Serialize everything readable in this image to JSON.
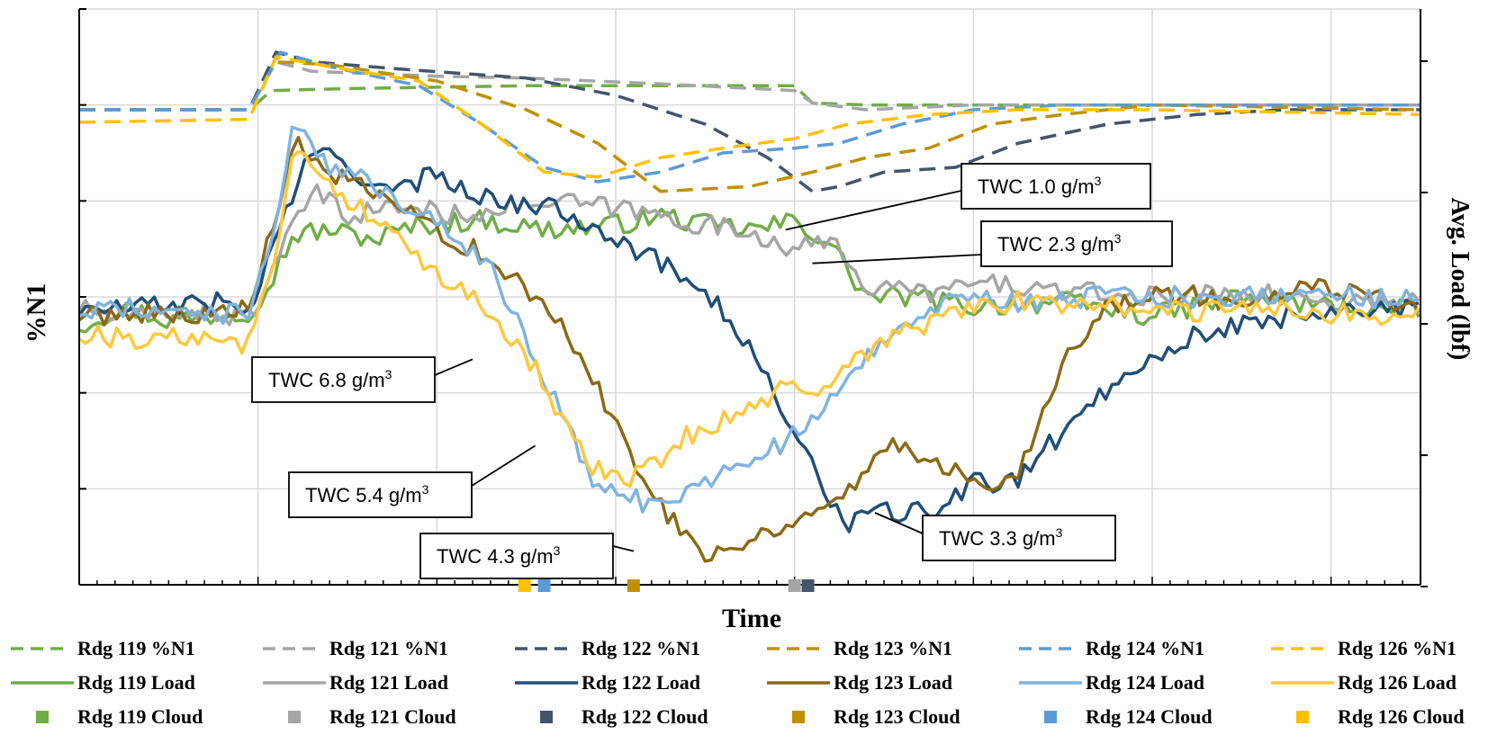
{
  "chart_data": {
    "type": "line",
    "xlabel": "Time",
    "ylabel": "%N1",
    "y2label": "Avg. Load (lbf)",
    "xlim": [
      0,
      15
    ],
    "ylim": [
      0,
      6
    ],
    "y2lim": [
      0,
      6
    ],
    "grid": true,
    "tick_labels_shown": false,
    "legend_position": "bottom",
    "colors": {
      "Rdg 119": "#70ad47",
      "Rdg 121": "#a5a5a5",
      "Rdg 122": "#44546a",
      "Rdg 123": "#bf9000",
      "Rdg 124": "#5b9bd5",
      "Rdg 126": "#ffc000"
    },
    "load_colors": {
      "Rdg 119": "#70ad47",
      "Rdg 121": "#a5a5a5",
      "Rdg 122": "#1f4e79",
      "Rdg 123": "#8b6914",
      "Rdg 124": "#7eb3e0",
      "Rdg 126": "#ffc83d"
    },
    "series_n1": [
      {
        "name": "Rdg 119 %N1",
        "key": "Rdg 119",
        "points": [
          [
            0,
            4.95
          ],
          [
            1.9,
            4.95
          ],
          [
            2.15,
            5.15
          ],
          [
            3,
            5.17
          ],
          [
            5,
            5.2
          ],
          [
            7,
            5.2
          ],
          [
            8,
            5.2
          ],
          [
            8.2,
            5.02
          ],
          [
            8.8,
            5
          ],
          [
            10,
            5
          ],
          [
            12,
            5
          ],
          [
            15,
            5
          ]
        ]
      },
      {
        "name": "Rdg 121 %N1",
        "key": "Rdg 121",
        "points": [
          [
            0,
            4.95
          ],
          [
            1.9,
            4.95
          ],
          [
            2.2,
            5.45
          ],
          [
            2.6,
            5.35
          ],
          [
            4,
            5.3
          ],
          [
            5,
            5.28
          ],
          [
            6.5,
            5.22
          ],
          [
            8,
            5.15
          ],
          [
            8.2,
            5.02
          ],
          [
            8.8,
            4.95
          ],
          [
            10,
            5.0
          ],
          [
            12,
            5.0
          ],
          [
            15,
            5.0
          ]
        ]
      },
      {
        "name": "Rdg 122 %N1",
        "key": "Rdg 122",
        "points": [
          [
            0,
            4.95
          ],
          [
            1.9,
            4.95
          ],
          [
            2.2,
            5.55
          ],
          [
            2.6,
            5.45
          ],
          [
            3.5,
            5.38
          ],
          [
            5,
            5.28
          ],
          [
            6,
            5.1
          ],
          [
            7,
            4.8
          ],
          [
            7.7,
            4.45
          ],
          [
            8.2,
            4.1
          ],
          [
            8.5,
            4.15
          ],
          [
            9,
            4.3
          ],
          [
            9.8,
            4.35
          ],
          [
            10.5,
            4.6
          ],
          [
            11.5,
            4.8
          ],
          [
            12.5,
            4.9
          ],
          [
            13.5,
            4.95
          ],
          [
            15,
            4.95
          ]
        ]
      },
      {
        "name": "Rdg 123 %N1",
        "key": "Rdg 123",
        "points": [
          [
            0,
            4.95
          ],
          [
            1.9,
            4.95
          ],
          [
            2.2,
            5.45
          ],
          [
            2.8,
            5.42
          ],
          [
            4,
            5.25
          ],
          [
            5,
            4.95
          ],
          [
            5.8,
            4.6
          ],
          [
            6.5,
            4.1
          ],
          [
            7.5,
            4.15
          ],
          [
            8.2,
            4.3
          ],
          [
            8.8,
            4.45
          ],
          [
            9.5,
            4.55
          ],
          [
            10.2,
            4.8
          ],
          [
            11,
            4.9
          ],
          [
            12,
            5.0
          ],
          [
            15,
            4.95
          ]
        ]
      },
      {
        "name": "Rdg 124 %N1",
        "key": "Rdg 124",
        "points": [
          [
            0,
            4.95
          ],
          [
            1.9,
            4.95
          ],
          [
            2.25,
            5.55
          ],
          [
            2.8,
            5.4
          ],
          [
            3.8,
            5.2
          ],
          [
            4.5,
            4.8
          ],
          [
            5.2,
            4.35
          ],
          [
            5.8,
            4.2
          ],
          [
            6.5,
            4.3
          ],
          [
            7.2,
            4.5
          ],
          [
            8,
            4.55
          ],
          [
            8.5,
            4.6
          ],
          [
            9.2,
            4.8
          ],
          [
            10,
            4.95
          ],
          [
            11,
            5.0
          ],
          [
            12,
            5.0
          ],
          [
            15,
            5.0
          ]
        ]
      },
      {
        "name": "Rdg 126 %N1",
        "key": "Rdg 126",
        "points": [
          [
            0,
            4.82
          ],
          [
            1.9,
            4.85
          ],
          [
            2.2,
            5.5
          ],
          [
            2.8,
            5.4
          ],
          [
            3.8,
            5.25
          ],
          [
            4.5,
            4.8
          ],
          [
            5.2,
            4.3
          ],
          [
            5.8,
            4.25
          ],
          [
            6.5,
            4.45
          ],
          [
            7.2,
            4.55
          ],
          [
            8,
            4.65
          ],
          [
            8.6,
            4.8
          ],
          [
            9.5,
            4.9
          ],
          [
            10.5,
            4.95
          ],
          [
            12,
            4.95
          ],
          [
            15,
            4.9
          ]
        ]
      }
    ],
    "series_load": [
      {
        "name": "Rdg 119 Load",
        "key": "Rdg 119",
        "points": [
          [
            0,
            2.7
          ],
          [
            0.5,
            2.9
          ],
          [
            1,
            2.75
          ],
          [
            1.9,
            2.85
          ],
          [
            2.1,
            3.1
          ],
          [
            2.4,
            3.65
          ],
          [
            2.8,
            3.7
          ],
          [
            3.3,
            3.6
          ],
          [
            3.8,
            3.75
          ],
          [
            4.5,
            3.8
          ],
          [
            5.2,
            3.7
          ],
          [
            6,
            3.75
          ],
          [
            6.5,
            3.85
          ],
          [
            7,
            3.75
          ],
          [
            7.6,
            3.7
          ],
          [
            8.0,
            3.8
          ],
          [
            8.4,
            3.55
          ],
          [
            8.8,
            3.0
          ],
          [
            9.3,
            3.0
          ],
          [
            10,
            2.9
          ],
          [
            11,
            2.95
          ],
          [
            12,
            2.8
          ],
          [
            13,
            3.0
          ],
          [
            14,
            2.9
          ],
          [
            15,
            2.85
          ]
        ]
      },
      {
        "name": "Rdg 121 Load",
        "key": "Rdg 121",
        "points": [
          [
            0,
            2.9
          ],
          [
            0.5,
            2.75
          ],
          [
            1,
            2.85
          ],
          [
            1.9,
            2.8
          ],
          [
            2.2,
            3.3
          ],
          [
            2.4,
            3.75
          ],
          [
            2.6,
            4.1
          ],
          [
            3.0,
            3.85
          ],
          [
            3.6,
            3.95
          ],
          [
            4.2,
            3.85
          ],
          [
            4.8,
            3.95
          ],
          [
            5.5,
            3.98
          ],
          [
            6.2,
            3.9
          ],
          [
            7,
            3.75
          ],
          [
            7.6,
            3.65
          ],
          [
            8.0,
            3.5
          ],
          [
            8.5,
            3.55
          ],
          [
            8.8,
            3.1
          ],
          [
            9.5,
            3.05
          ],
          [
            10.2,
            3.15
          ],
          [
            11,
            3.05
          ],
          [
            12,
            3.0
          ],
          [
            13,
            3.05
          ],
          [
            14,
            2.95
          ],
          [
            15,
            2.95
          ]
        ]
      },
      {
        "name": "Rdg 122 Load",
        "key": "Rdg 122",
        "points": [
          [
            0,
            2.85
          ],
          [
            0.8,
            2.9
          ],
          [
            1.5,
            2.95
          ],
          [
            1.9,
            2.85
          ],
          [
            2.2,
            3.6
          ],
          [
            2.5,
            4.35
          ],
          [
            2.8,
            4.5
          ],
          [
            3.5,
            4.05
          ],
          [
            4,
            4.3
          ],
          [
            4.6,
            4.0
          ],
          [
            5.2,
            3.95
          ],
          [
            5.8,
            3.75
          ],
          [
            6.2,
            3.5
          ],
          [
            7,
            3.1
          ],
          [
            7.6,
            2.3
          ],
          [
            8.0,
            1.6
          ],
          [
            8.3,
            1.0
          ],
          [
            8.6,
            0.65
          ],
          [
            9.0,
            0.75
          ],
          [
            9.5,
            0.75
          ],
          [
            10,
            1.05
          ],
          [
            10.5,
            1.1
          ],
          [
            11,
            1.6
          ],
          [
            11.5,
            2.05
          ],
          [
            12,
            2.4
          ],
          [
            12.5,
            2.6
          ],
          [
            13.5,
            2.8
          ],
          [
            14.3,
            2.9
          ],
          [
            15,
            2.85
          ]
        ]
      },
      {
        "name": "Rdg 123 Load",
        "key": "Rdg 123",
        "points": [
          [
            0,
            2.8
          ],
          [
            0.8,
            2.85
          ],
          [
            1.5,
            2.8
          ],
          [
            1.9,
            2.9
          ],
          [
            2.2,
            3.8
          ],
          [
            2.4,
            4.6
          ],
          [
            2.8,
            4.3
          ],
          [
            3.5,
            3.95
          ],
          [
            4.2,
            3.6
          ],
          [
            4.6,
            3.4
          ],
          [
            5.0,
            3.05
          ],
          [
            5.4,
            2.7
          ],
          [
            5.7,
            2.2
          ],
          [
            6.0,
            1.7
          ],
          [
            6.3,
            1.15
          ],
          [
            6.6,
            0.7
          ],
          [
            7.0,
            0.35
          ],
          [
            7.4,
            0.4
          ],
          [
            7.9,
            0.65
          ],
          [
            8.2,
            0.75
          ],
          [
            8.6,
            0.95
          ],
          [
            9.0,
            1.5
          ],
          [
            9.4,
            1.35
          ],
          [
            9.8,
            1.2
          ],
          [
            10.2,
            1.05
          ],
          [
            10.5,
            1.2
          ],
          [
            11,
            2.3
          ],
          [
            11.5,
            2.9
          ],
          [
            12,
            3.05
          ],
          [
            13,
            2.95
          ],
          [
            14,
            3.1
          ],
          [
            15,
            2.9
          ]
        ]
      },
      {
        "name": "Rdg 124 Load",
        "key": "Rdg 124",
        "points": [
          [
            0,
            2.85
          ],
          [
            0.8,
            2.9
          ],
          [
            1.5,
            2.8
          ],
          [
            1.9,
            2.85
          ],
          [
            2.2,
            3.8
          ],
          [
            2.4,
            4.8
          ],
          [
            2.7,
            4.4
          ],
          [
            3.2,
            4.2
          ],
          [
            3.7,
            3.95
          ],
          [
            4.1,
            3.75
          ],
          [
            4.6,
            3.3
          ],
          [
            5.0,
            2.55
          ],
          [
            5.4,
            1.8
          ],
          [
            5.7,
            1.1
          ],
          [
            6.0,
            1.0
          ],
          [
            6.3,
            0.85
          ],
          [
            6.8,
            0.95
          ],
          [
            7.2,
            1.2
          ],
          [
            7.7,
            1.4
          ],
          [
            8.1,
            1.6
          ],
          [
            8.5,
            2.0
          ],
          [
            8.8,
            2.4
          ],
          [
            9.3,
            2.8
          ],
          [
            9.8,
            2.95
          ],
          [
            10.5,
            2.95
          ],
          [
            11.5,
            3.0
          ],
          [
            12.5,
            3.0
          ],
          [
            13.5,
            3.05
          ],
          [
            15,
            2.95
          ]
        ]
      },
      {
        "name": "Rdg 126 Load",
        "key": "Rdg 126",
        "points": [
          [
            0,
            2.6
          ],
          [
            0.8,
            2.55
          ],
          [
            1.5,
            2.6
          ],
          [
            1.9,
            2.5
          ],
          [
            2.2,
            3.5
          ],
          [
            2.4,
            4.65
          ],
          [
            2.8,
            4.15
          ],
          [
            3.4,
            3.75
          ],
          [
            3.9,
            3.3
          ],
          [
            4.4,
            3.05
          ],
          [
            4.8,
            2.6
          ],
          [
            5.1,
            2.25
          ],
          [
            5.4,
            1.7
          ],
          [
            5.7,
            1.25
          ],
          [
            6.0,
            1.1
          ],
          [
            6.3,
            1.15
          ],
          [
            6.8,
            1.55
          ],
          [
            7.4,
            1.8
          ],
          [
            7.9,
            2.05
          ],
          [
            8.3,
            2.05
          ],
          [
            8.8,
            2.4
          ],
          [
            9.3,
            2.65
          ],
          [
            9.8,
            2.85
          ],
          [
            10.5,
            2.95
          ],
          [
            11.5,
            2.9
          ],
          [
            12.5,
            2.85
          ],
          [
            13.5,
            2.85
          ],
          [
            15,
            2.8
          ]
        ]
      }
    ],
    "series_cloud": [
      {
        "name": "Rdg 119 Cloud",
        "key": "Rdg 119",
        "x": null
      },
      {
        "name": "Rdg 121 Cloud",
        "key": "Rdg 121",
        "x": 8.0
      },
      {
        "name": "Rdg 122 Cloud",
        "key": "Rdg 122",
        "x": 8.15
      },
      {
        "name": "Rdg 123 Cloud",
        "key": "Rdg 123",
        "x": 6.2
      },
      {
        "name": "Rdg 124 Cloud",
        "key": "Rdg 124",
        "x": 5.2
      },
      {
        "name": "Rdg 126 Cloud",
        "key": "Rdg 126",
        "x": 4.98
      }
    ],
    "annotations": [
      {
        "id": "twc-1-0",
        "text": "TWC 1.0 g/m",
        "sup": "3",
        "target": [
          7.9,
          3.7
        ]
      },
      {
        "id": "twc-2-3",
        "text": "TWC 2.3 g/m",
        "sup": "3",
        "target": [
          8.2,
          3.35
        ]
      },
      {
        "id": "twc-6-8",
        "text": "TWC 6.8 g/m",
        "sup": "3",
        "target": [
          4.4,
          2.35
        ]
      },
      {
        "id": "twc-5-4",
        "text": "TWC 5.4 g/m",
        "sup": "3",
        "target": [
          5.1,
          1.45
        ]
      },
      {
        "id": "twc-4-3",
        "text": "TWC 4.3 g/m",
        "sup": "3",
        "target": [
          6.2,
          0.35
        ]
      },
      {
        "id": "twc-3-3",
        "text": "TWC 3.3 g/m",
        "sup": "3",
        "target": [
          8.9,
          0.75
        ]
      }
    ]
  }
}
